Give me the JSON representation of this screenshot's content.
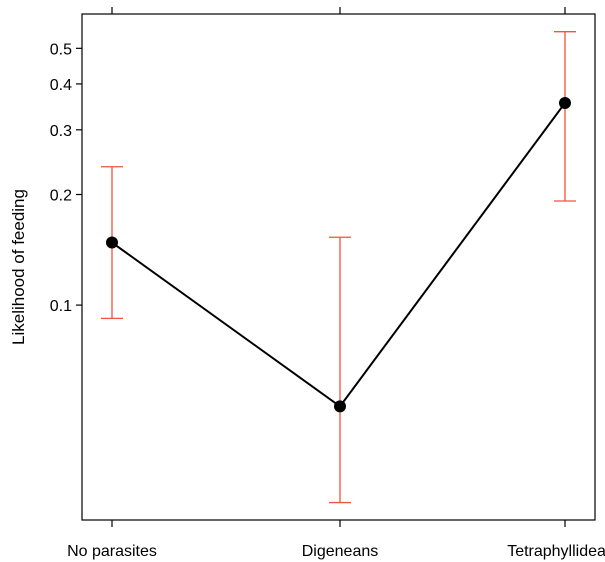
{
  "chart_data": {
    "type": "line",
    "title": "",
    "xlabel": "",
    "ylabel": "Likelihood of feeding",
    "y_scale": "log",
    "ylim": [
      0.026,
      0.62
    ],
    "y_ticks": [
      0.1,
      0.2,
      0.3,
      0.4,
      0.5
    ],
    "y_tick_labels": [
      "0.1",
      "0.2",
      "0.3",
      "0.4",
      "0.5"
    ],
    "categories": [
      "No parasites",
      "Digeneans",
      "Tetraphyllideans"
    ],
    "values": [
      0.148,
      0.053,
      0.355
    ],
    "ci_lower": [
      0.092,
      0.029,
      0.192
    ],
    "ci_upper": [
      0.238,
      0.153,
      0.555
    ],
    "grid": false,
    "line_color": "#000000",
    "point_color": "#000000",
    "errorbar_color": "#f0533f"
  }
}
